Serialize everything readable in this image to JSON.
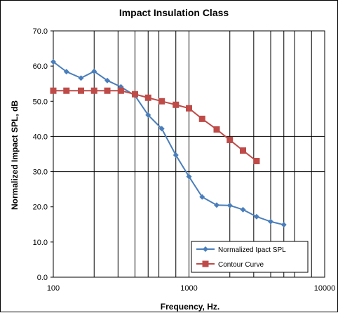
{
  "chart_data": {
    "type": "line",
    "title": "Impact Insulation Class",
    "xlabel": "Frequency, Hz.",
    "ylabel": "Normalized Impact SPL, dB",
    "x_scale": "log",
    "xlim": [
      100,
      10000
    ],
    "ylim": [
      0,
      70
    ],
    "x_ticks": [
      100,
      1000,
      10000
    ],
    "x_tick_labels": [
      "100",
      "1000",
      "10000"
    ],
    "x_gridlines": [
      200,
      300,
      400,
      500,
      600,
      800,
      1000,
      2000,
      3000,
      4000,
      5000,
      6000,
      8000
    ],
    "y_ticks": [
      0,
      10,
      20,
      30,
      40,
      50,
      60,
      70
    ],
    "y_tick_labels": [
      "0.0",
      "10.0",
      "20.0",
      "30.0",
      "40.0",
      "50.0",
      "60.0",
      "70.0"
    ],
    "y_gridlines": [
      30,
      40
    ],
    "legend_position": "bottom-right",
    "series": [
      {
        "name": "Normalized Ipact SPL",
        "color": "#4a7ebb",
        "marker": "diamond",
        "x": [
          100,
          125,
          160,
          200,
          250,
          315,
          400,
          500,
          630,
          800,
          1000,
          1250,
          1600,
          2000,
          2500,
          3150,
          4000,
          5000
        ],
        "values": [
          61.2,
          58.4,
          56.6,
          58.5,
          55.9,
          54.1,
          51.6,
          46.1,
          42.2,
          34.7,
          28.6,
          22.8,
          20.5,
          20.4,
          19.2,
          17.2,
          15.8,
          14.9
        ]
      },
      {
        "name": "Contour Curve",
        "color": "#be4b48",
        "marker": "square",
        "x": [
          100,
          125,
          160,
          200,
          250,
          315,
          400,
          500,
          630,
          800,
          1000,
          1250,
          1600,
          2000,
          2500,
          3150
        ],
        "values": [
          53,
          53,
          53,
          53,
          53,
          53,
          52,
          51,
          50,
          49,
          48,
          45,
          42,
          39,
          36,
          33
        ]
      }
    ]
  }
}
